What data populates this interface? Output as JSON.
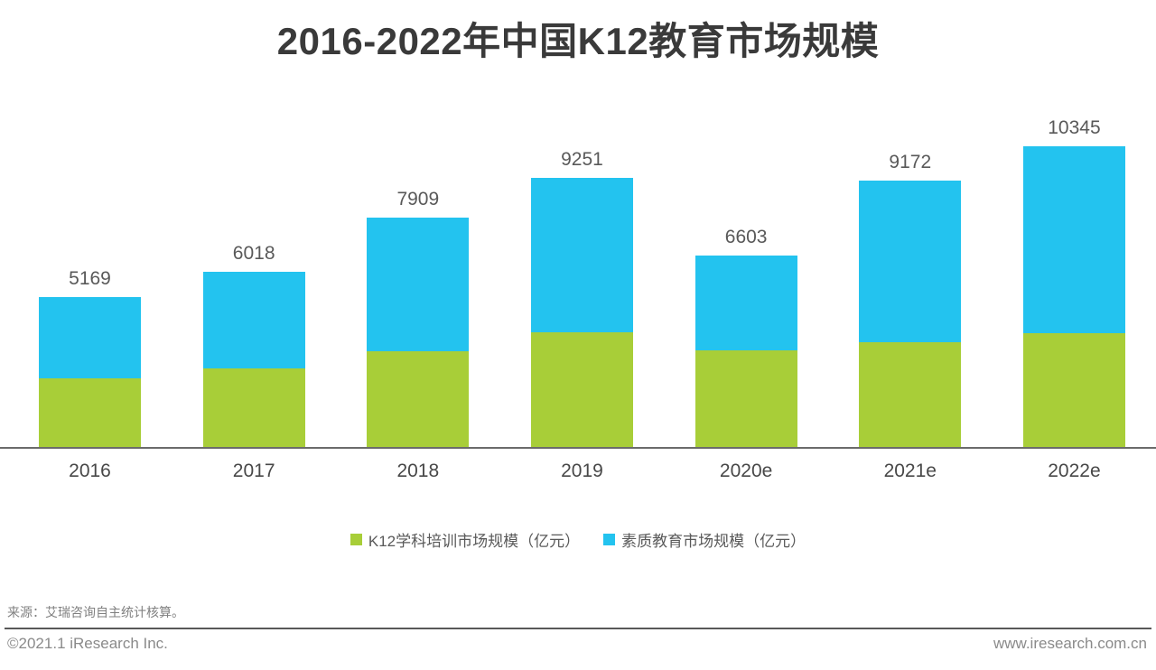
{
  "title": "2016-2022年中国K12教育市场规模",
  "chart_data": {
    "type": "bar",
    "stacked": true,
    "title": "2016-2022年中国K12教育市场规模",
    "categories": [
      "2016",
      "2017",
      "2018",
      "2019",
      "2020e",
      "2021e",
      "2022e"
    ],
    "totals": [
      5169,
      6018,
      7909,
      9251,
      6603,
      9172,
      10345
    ],
    "series": [
      {
        "name": "K12学科培训市场规模（亿元）",
        "color": "#a8ce38",
        "values": [
          2360,
          2715,
          3315,
          3965,
          3335,
          3615,
          3915
        ]
      },
      {
        "name": "素质教育市场规模（亿元）",
        "color": "#23c3ef",
        "values": [
          2809,
          3303,
          4594,
          5286,
          3268,
          5557,
          6430
        ]
      }
    ],
    "value_labels_shown": "totals above each bar",
    "legend_position": "bottom",
    "grid": false,
    "axis_line_color": "#6b6b6b"
  },
  "legend": {
    "items": [
      {
        "label": "K12学科培训市场规模（亿元）",
        "color": "#a8ce38"
      },
      {
        "label": "素质教育市场规模（亿元）",
        "color": "#23c3ef"
      }
    ]
  },
  "footer": {
    "source": "来源：艾瑞咨询自主统计核算。",
    "copyright": "©2021.1 iResearch Inc.",
    "website": "www.iresearch.com.cn"
  }
}
